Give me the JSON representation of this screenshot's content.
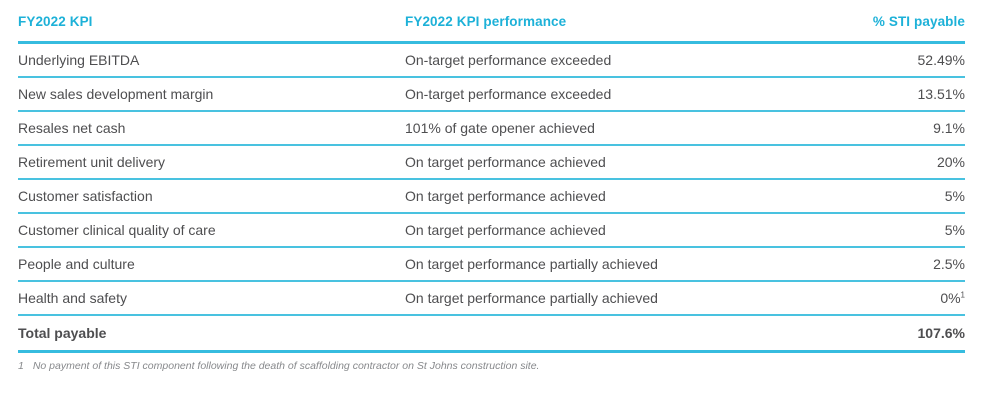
{
  "colors": {
    "accent_line": "#36bcdf",
    "row_line": "#49c2e0",
    "header_text": "#1db1d8",
    "body_text": "#4e4e50",
    "footnote_text": "#87898c",
    "background": "#ffffff"
  },
  "table": {
    "columns": [
      {
        "label": "FY2022 KPI"
      },
      {
        "label": "FY2022 KPI performance"
      },
      {
        "label": "% STI payable"
      }
    ],
    "rows": [
      {
        "kpi": "Underlying EBITDA",
        "performance": "On-target performance exceeded",
        "payable": "52.49%"
      },
      {
        "kpi": "New sales development margin",
        "performance": "On-target performance exceeded",
        "payable": "13.51%"
      },
      {
        "kpi": "Resales net cash",
        "performance": "101% of gate opener achieved",
        "payable": "9.1%"
      },
      {
        "kpi": "Retirement unit delivery",
        "performance": "On target performance achieved",
        "payable": "20%"
      },
      {
        "kpi": "Customer satisfaction",
        "performance": "On target performance achieved",
        "payable": "5%"
      },
      {
        "kpi": "Customer clinical quality of care",
        "performance": "On target performance achieved",
        "payable": "5%"
      },
      {
        "kpi": "People and culture",
        "performance": "On target performance partially achieved",
        "payable": "2.5%"
      },
      {
        "kpi": "Health and safety",
        "performance": "On target performance partially achieved",
        "payable": "0%",
        "note_marker": "1"
      }
    ],
    "total": {
      "label": "Total payable",
      "payable": "107.6%"
    },
    "footnote": {
      "marker": "1",
      "text": "No payment of this STI component following the death of scaffolding contractor on St Johns construction site."
    }
  }
}
